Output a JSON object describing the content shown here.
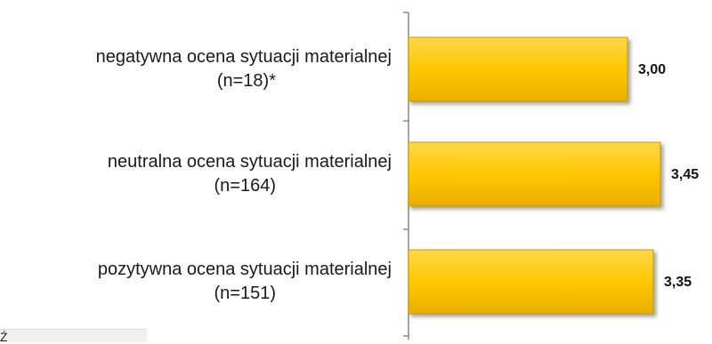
{
  "chart_data": {
    "type": "bar",
    "orientation": "horizontal",
    "categories": [
      {
        "line1": "negatywna ocena sytuacji materialnej",
        "line2": "(n=18)*"
      },
      {
        "line1": "neutralna ocena sytuacji materialnej",
        "line2": "(n=164)"
      },
      {
        "line1": "pozytywna ocena sytuacji materialnej",
        "line2": "(n=151)"
      }
    ],
    "values": [
      3.0,
      3.45,
      3.35
    ],
    "value_labels": [
      "3,00",
      "3,45",
      "3,35"
    ],
    "bar_color": "#FFC800",
    "bar_stroke": "#C89A00",
    "axis_color": "#888888",
    "grid": false,
    "legend": "none"
  },
  "footnote": "Ź"
}
